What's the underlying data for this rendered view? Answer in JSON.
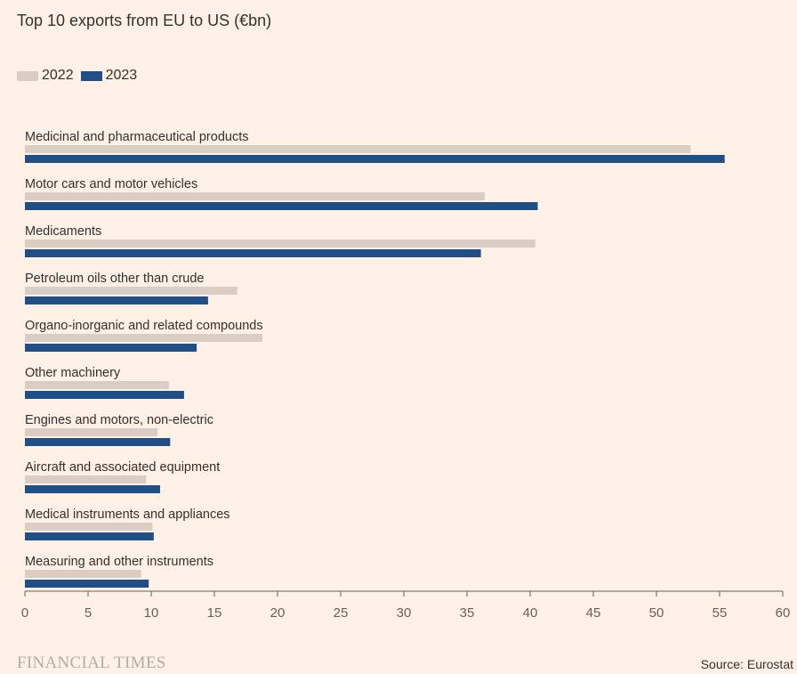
{
  "chart_data": {
    "type": "bar",
    "orientation": "horizontal",
    "title": "Top 10 exports from EU to US (€bn)",
    "categories": [
      "Medicinal and pharmaceutical products",
      "Motor cars and motor vehicles",
      "Medicaments",
      "Petroleum oils other than crude",
      "Organo-inorganic and related compounds",
      "Other machinery",
      "Engines and motors, non-electric",
      "Aircraft and associated equipment",
      "Medical instruments and appliances",
      "Measuring and other instruments"
    ],
    "series": [
      {
        "name": "2022",
        "color": "#d9cdc4",
        "values": [
          52.7,
          36.4,
          40.4,
          16.8,
          18.8,
          11.4,
          10.5,
          9.6,
          10.1,
          9.2
        ]
      },
      {
        "name": "2023",
        "color": "#1e4f86",
        "values": [
          55.4,
          40.6,
          36.1,
          14.5,
          13.6,
          12.6,
          11.5,
          10.7,
          10.2,
          9.8
        ]
      }
    ],
    "xlim": [
      0,
      60
    ],
    "xticks": [
      0,
      5,
      10,
      15,
      20,
      25,
      30,
      35,
      40,
      45,
      50,
      55,
      60
    ],
    "grid": false,
    "legend_position": "top-left"
  },
  "footer": {
    "brand": "FINANCIAL TIMES",
    "source": "Source: Eurostat"
  }
}
